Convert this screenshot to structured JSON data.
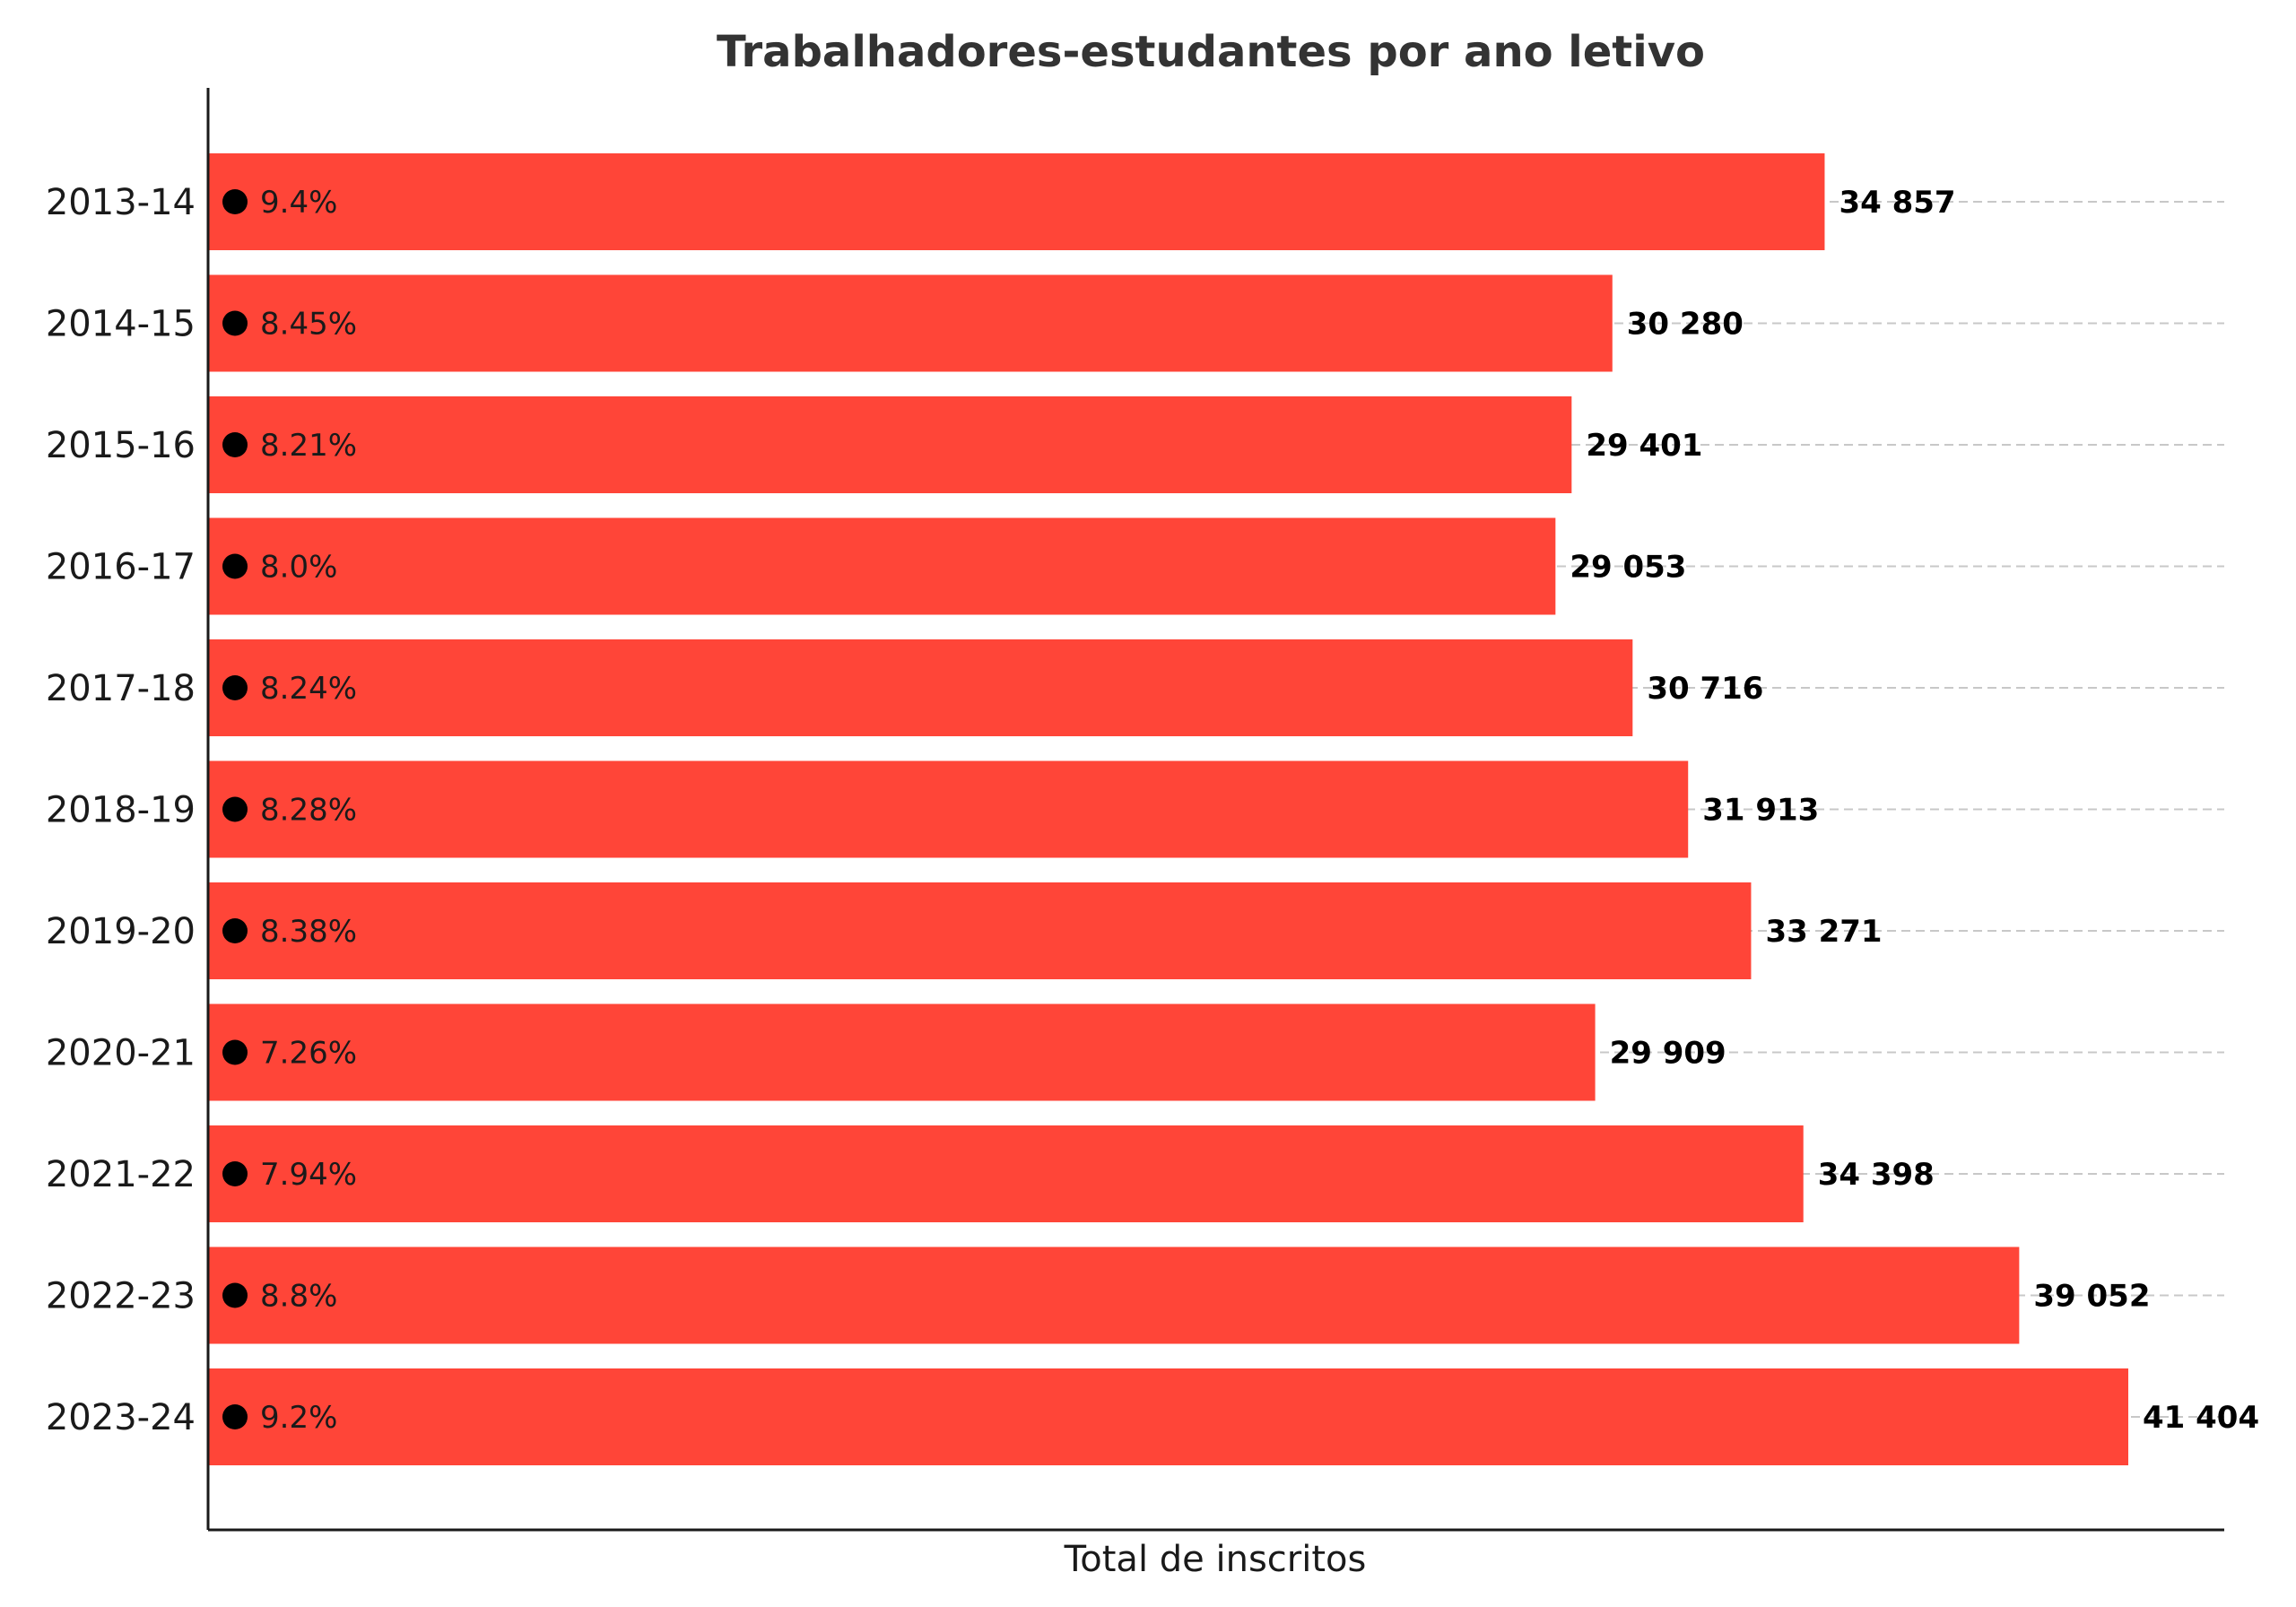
{
  "chart_data": {
    "type": "bar",
    "orientation": "horizontal",
    "title": "Trabalhadores-estudantes por ano letivo",
    "xlabel": "Total de inscritos",
    "ylabel": "",
    "categories": [
      "2013-14",
      "2014-15",
      "2015-16",
      "2016-17",
      "2017-18",
      "2018-19",
      "2019-20",
      "2020-21",
      "2021-22",
      "2022-23",
      "2023-24"
    ],
    "values": [
      34857,
      30280,
      29401,
      29053,
      30716,
      31913,
      33271,
      29909,
      34398,
      39052,
      41404
    ],
    "value_labels": [
      "34 857",
      "30 280",
      "29 401",
      "29 053",
      "30 716",
      "31 913",
      "33 271",
      "29 909",
      "34 398",
      "39 052",
      "41 404"
    ],
    "percent_labels": [
      "9.4%",
      "8.45%",
      "8.21%",
      "8.0%",
      "8.24%",
      "8.28%",
      "8.38%",
      "7.26%",
      "7.94%",
      "8.8%",
      "9.2%"
    ],
    "xlim": [
      0,
      43500
    ],
    "grid": "horizontal-dashed",
    "legend": "none",
    "bar_color": "#ff4538",
    "marker_color": "#000000"
  }
}
